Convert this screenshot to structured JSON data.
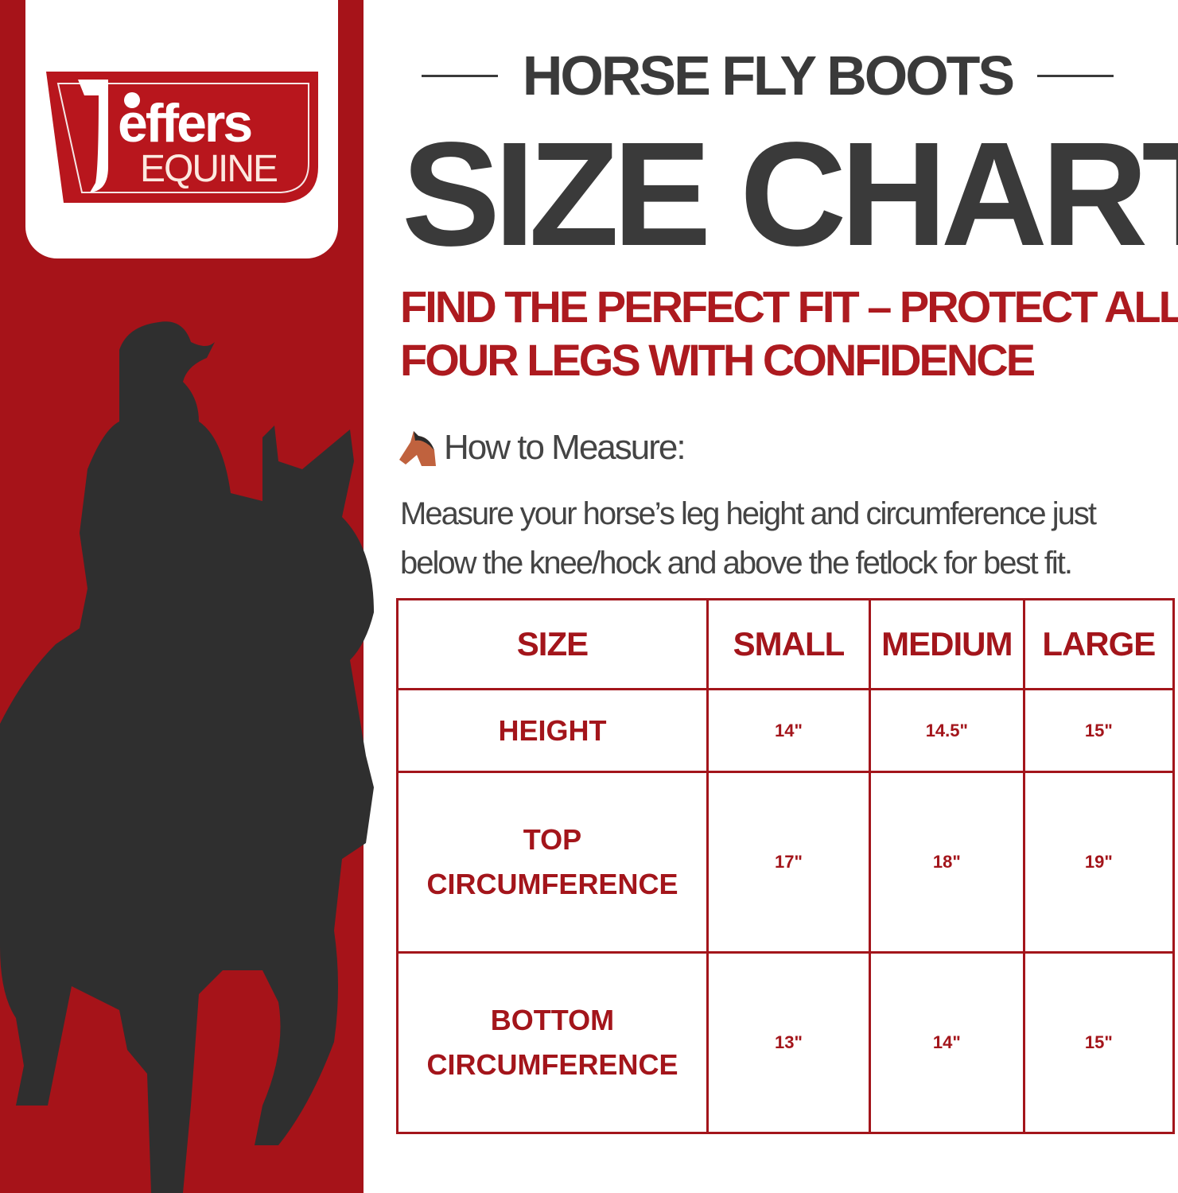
{
  "brand": {
    "name": "jeffers",
    "sub": "EQUINE"
  },
  "header": {
    "title": "HORSE FLY BOOTS",
    "headline": "SIZE CHART",
    "subtitle_lines": [
      "FIND THE PERFECT FIT – PROTECT ALL",
      "FOUR LEGS WITH CONFIDENCE"
    ]
  },
  "how": {
    "icon": "horse-face-icon",
    "label": "How to Measure:",
    "lines": [
      "Measure your horse’s leg height and circumference just",
      "below the knee/hock and above the fetlock for best fit."
    ]
  },
  "table": {
    "headers": [
      "SIZE",
      "SMALL",
      "MEDIUM",
      "LARGE"
    ],
    "rows": [
      {
        "label_lines": [
          "HEIGHT"
        ],
        "values": [
          "14\"",
          "14.5\"",
          "15\""
        ]
      },
      {
        "label_lines": [
          "TOP",
          "CIRCUMFERENCE"
        ],
        "values": [
          "17\"",
          "18\"",
          "19\""
        ]
      },
      {
        "label_lines": [
          "BOTTOM",
          "CIRCUMFERENCE"
        ],
        "values": [
          "13\"",
          "14\"",
          "15\""
        ]
      }
    ]
  },
  "colors": {
    "brand_red": "#a61319",
    "text_dark": "#3a3a3a"
  }
}
